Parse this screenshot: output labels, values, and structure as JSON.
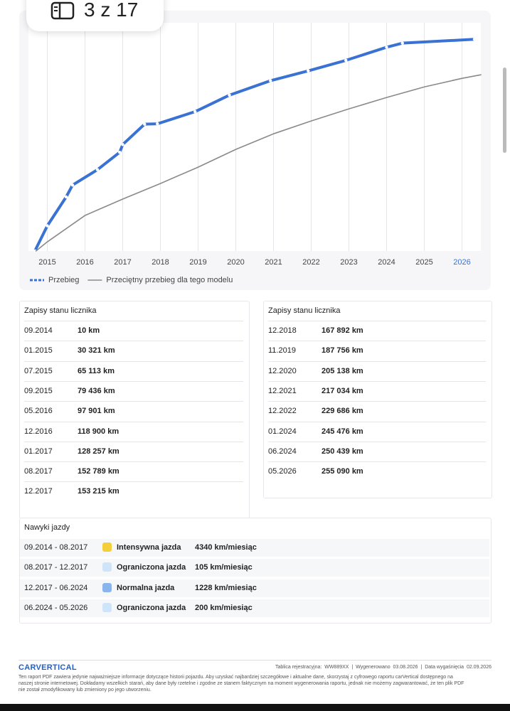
{
  "page_indicator": "3 z 17",
  "chart_data": {
    "type": "line",
    "xlim": [
      2014.5,
      2026.5
    ],
    "ylim": [
      0,
      275000
    ],
    "xticks": [
      2015,
      2016,
      2017,
      2018,
      2019,
      2020,
      2021,
      2022,
      2023,
      2024,
      2025,
      2026
    ],
    "grid": true,
    "series": [
      {
        "name": "Przebieg",
        "color": "#3a72d4",
        "markers": true,
        "x": [
          2014.67,
          2015.0,
          2015.5,
          2015.67,
          2016.33,
          2016.92,
          2017.0,
          2017.58,
          2017.92,
          2018.92,
          2019.83,
          2020.92,
          2021.92,
          2022.92,
          2024.0,
          2024.42,
          2026.33
        ],
        "values": [
          10,
          30321,
          65113,
          79436,
          97901,
          118900,
          128257,
          152789,
          153215,
          167892,
          187756,
          205138,
          217034,
          229686,
          245476,
          250439,
          255090
        ]
      },
      {
        "name": "Przeciętny przebieg dla tego modelu",
        "color": "#8a8a8a",
        "markers": false,
        "x": [
          2014.7,
          2015,
          2016,
          2017,
          2018,
          2019,
          2020,
          2021,
          2022,
          2023,
          2024,
          2025,
          2026,
          2026.5
        ],
        "values": [
          0,
          11000,
          42800,
          62500,
          81300,
          101000,
          122400,
          141200,
          156700,
          171200,
          184900,
          197700,
          208000,
          212300
        ]
      }
    ]
  },
  "odometer_tables": [
    {
      "title": "Zapisy stanu licznika",
      "rows": [
        [
          "09.2014",
          "10 km"
        ],
        [
          "01.2015",
          "30 321 km"
        ],
        [
          "07.2015",
          "65 113 km"
        ],
        [
          "09.2015",
          "79 436 km"
        ],
        [
          "05.2016",
          "97 901 km"
        ],
        [
          "12.2016",
          "118 900 km"
        ],
        [
          "01.2017",
          "128 257 km"
        ],
        [
          "08.2017",
          "152 789 km"
        ],
        [
          "12.2017",
          "153 215 km"
        ]
      ]
    },
    {
      "title": "Zapisy stanu licznika",
      "rows": [
        [
          "12.2018",
          "167 892 km"
        ],
        [
          "11.2019",
          "187 756 km"
        ],
        [
          "12.2020",
          "205 138 km"
        ],
        [
          "12.2021",
          "217 034 km"
        ],
        [
          "12.2022",
          "229 686 km"
        ],
        [
          "01.2024",
          "245 476 km"
        ],
        [
          "06.2024",
          "250 439 km"
        ],
        [
          "05.2026",
          "255 090 km"
        ]
      ]
    }
  ],
  "driving_styles": {
    "title": "Nawyki jazdy",
    "rows": [
      {
        "period": "09.2014 - 08.2017",
        "color": "#f5cf3b",
        "label": "Intensywna jazda",
        "rate": "4340 km/miesiąc"
      },
      {
        "period": "08.2017 - 12.2017",
        "color": "#cfe4f8",
        "label": "Ograniczona jazda",
        "rate": "105 km/miesiąc"
      },
      {
        "period": "12.2017 - 06.2024",
        "color": "#8ab4ec",
        "label": "Normalna jazda",
        "rate": "1228 km/miesiąc"
      },
      {
        "period": "06.2024 - 05.2026",
        "color": "#cfe4f8",
        "label": "Ograniczona jazda",
        "rate": "200 km/miesiąc"
      }
    ]
  },
  "footer": {
    "logo": "CARVERTICAL",
    "plate_label": "Tablica rejestracyjna:",
    "plate": "WW889XX",
    "generated_label": "Wygenerowano",
    "generated": "03.08.2026",
    "expiry_label": "Data wygaśnięcia",
    "expiry": "02.09.2026",
    "disclaimer": [
      "Ten raport PDF zawiera jedynie najważniejsze informacje dotyczące historii pojazdu. Aby uzyskać najbardziej szczegółowe i aktualne dane, skorzystaj z cyfrowego raportu carVertical dostępnego na",
      "naszej stronie internetowej. Dokładamy wszelkich starań, aby dane były rzetelne i zgodne ze stanem faktycznym na moment wygenerowania raportu, jednak nie możemy zagwarantować, że ten plik PDF",
      "nie został zmodyfikowany lub zmieniony po jego utworzeniu."
    ]
  }
}
